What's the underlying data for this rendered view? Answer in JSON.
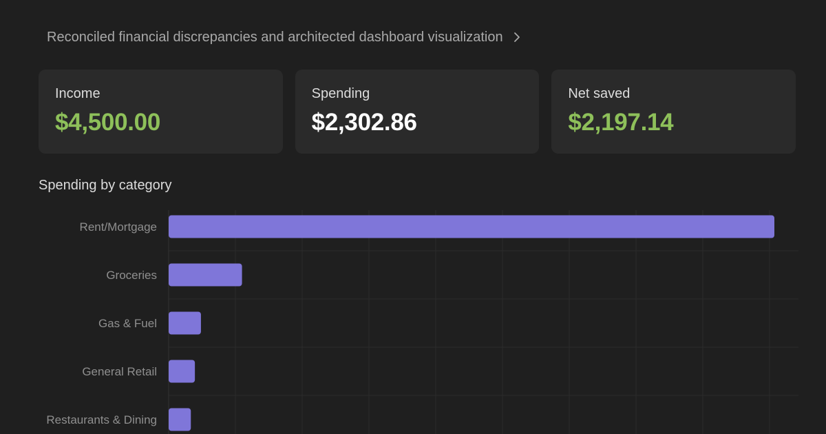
{
  "breadcrumb": {
    "text": "Reconciled financial discrepancies and architected dashboard visualization",
    "icon": "chevron-right-icon"
  },
  "summary": {
    "income": {
      "label": "Income",
      "value": "$4,500.00",
      "color": "#8ec05a"
    },
    "spending": {
      "label": "Spending",
      "value": "$2,302.86",
      "color": "#ffffff"
    },
    "net_saved": {
      "label": "Net saved",
      "value": "$2,197.14",
      "color": "#8ec05a"
    }
  },
  "section": {
    "title": "Spending by category"
  },
  "colors": {
    "bar": "#7f76d9",
    "grid": "#2b2b2b",
    "tick_label": "#8f8f8f"
  },
  "chart_data": {
    "type": "bar",
    "orientation": "horizontal",
    "title": "",
    "xlabel": "",
    "ylabel": "",
    "categories": [
      "Rent/Mortgage",
      "Groceries",
      "Gas & Fuel",
      "General Retail",
      "Restaurants & Dining"
    ],
    "values": [
      1800,
      218,
      96,
      78,
      66
    ],
    "xlim": [
      0,
      1800
    ],
    "grid": true,
    "legend": "none"
  }
}
